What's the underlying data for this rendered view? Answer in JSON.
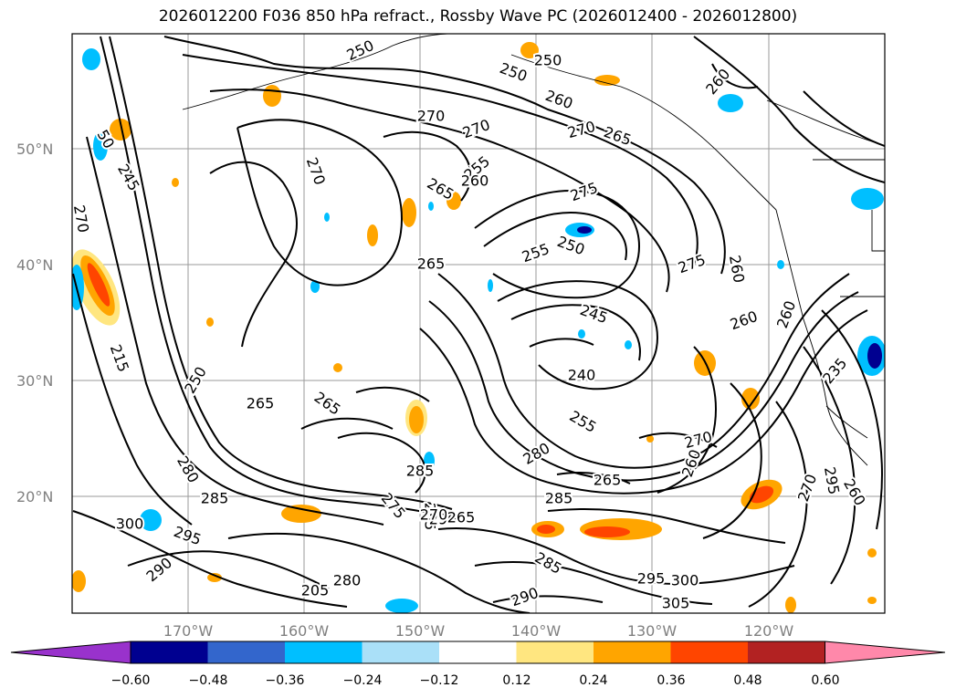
{
  "title": "2026012200 F036 850 hPa refract., Rossby Wave PC (2026012400 - 2026012800)",
  "axes": {
    "lat_labels": [
      "50°N",
      "40°N",
      "30°N",
      "20°N"
    ],
    "lon_labels": [
      "170°W",
      "160°W",
      "150°W",
      "140°W",
      "130°W",
      "120°W"
    ],
    "lat_range": [
      10,
      60
    ],
    "lon_range": [
      -180,
      -110
    ]
  },
  "contour_labels": [
    "250",
    "250",
    "250",
    "260",
    "260",
    "270",
    "270",
    "270",
    "265",
    "270",
    "265",
    "255",
    "260",
    "275",
    "50",
    "245",
    "270",
    "250",
    "255",
    "265",
    "240",
    "245",
    "260",
    "260",
    "260",
    "255",
    "235",
    "250",
    "265",
    "280",
    "285",
    "285",
    "265",
    "265",
    "275",
    "215",
    "270",
    "280",
    "265",
    "270",
    "260",
    "285",
    "275",
    "295",
    "300",
    "295",
    "290",
    "285",
    "280",
    "205",
    "290",
    "295",
    "300",
    "305",
    "290",
    "270",
    "265",
    "260"
  ],
  "colorbar": {
    "ticks": [
      "−0.60",
      "−0.48",
      "−0.36",
      "−0.24",
      "−0.12",
      "0.12",
      "0.24",
      "0.36",
      "0.48",
      "0.60"
    ],
    "colors": [
      "#9932cc",
      "#000090",
      "#3366cc",
      "#00bfff",
      "#aae0f8",
      "#ffffff",
      "#ffe680",
      "#ffa500",
      "#ff4500",
      "#b22222",
      "#ff88aa"
    ]
  }
}
